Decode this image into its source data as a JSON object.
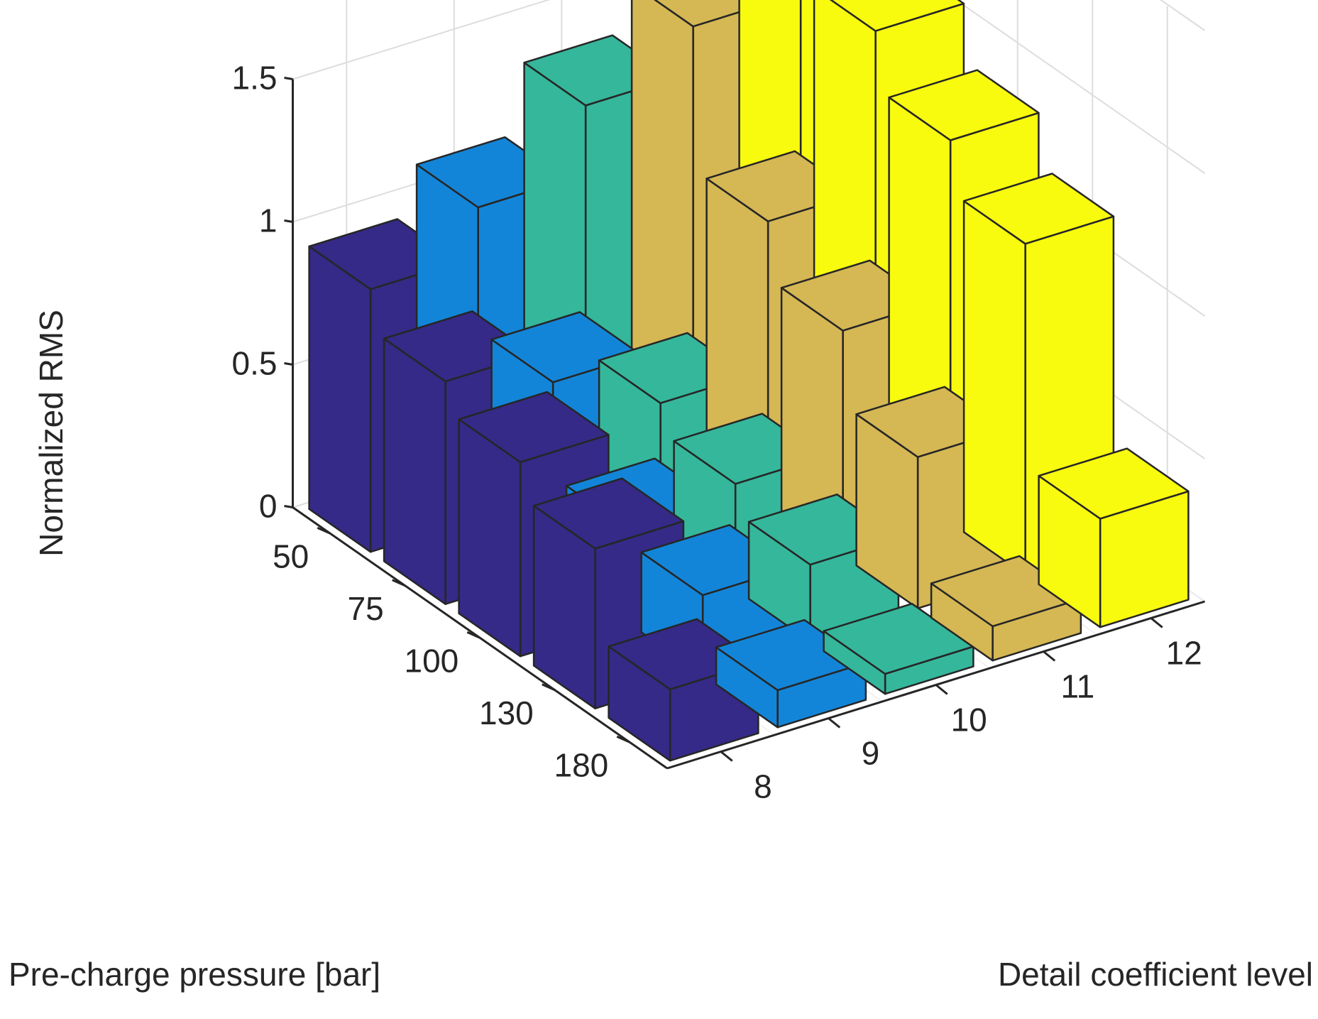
{
  "chart_data": {
    "type": "bar3d",
    "xlabel": "Detail coefficient level",
    "ylabel": "Pre-charge pressure [bar]",
    "zlabel": "Normalized RMS",
    "x_ticks": [
      "8",
      "9",
      "10",
      "11",
      "12"
    ],
    "y_ticks": [
      "50",
      "75",
      "100",
      "130",
      "180"
    ],
    "z_ticks": [
      "0",
      "0.5",
      "1",
      "1.5"
    ],
    "zlim": [
      0,
      1.5
    ],
    "grid": true,
    "series": [
      {
        "level": "8",
        "color": "#352a87",
        "values": [
          0.92,
          0.78,
          0.68,
          0.56,
          0.25
        ]
      },
      {
        "level": "9",
        "color": "#1385d8",
        "values": [
          1.09,
          0.66,
          0.33,
          0.28,
          0.13
        ]
      },
      {
        "level": "10",
        "color": "#35b79b",
        "values": [
          1.33,
          0.47,
          0.37,
          0.27,
          0.07
        ]
      },
      {
        "level": "11",
        "color": "#d5b754",
        "values": [
          1.49,
          0.99,
          0.79,
          0.53,
          0.12
        ]
      },
      {
        "level": "12",
        "color": "#f9fb0e",
        "values": [
          1.61,
          1.54,
          1.34,
          1.16,
          0.38
        ]
      }
    ]
  }
}
